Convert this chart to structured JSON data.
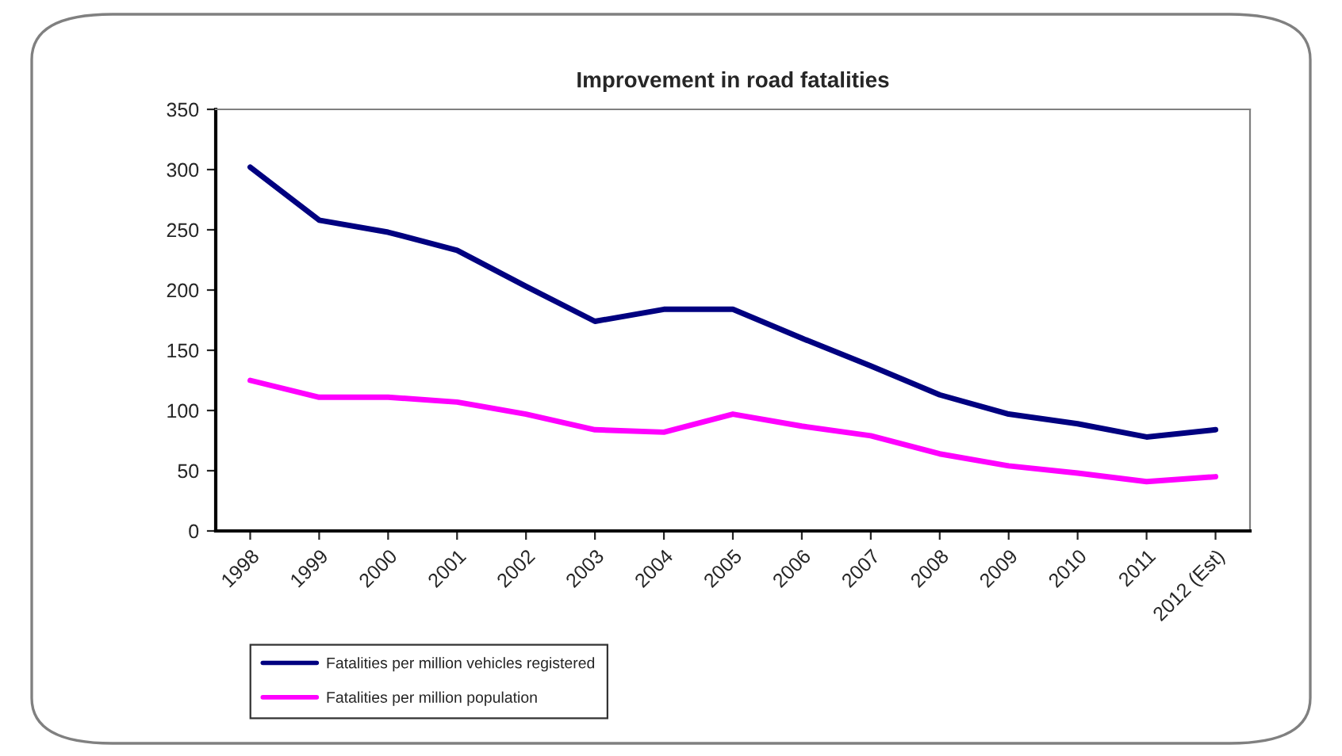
{
  "chart_data": {
    "type": "line",
    "title": "Improvement in road fatalities",
    "categories": [
      "1998",
      "1999",
      "2000",
      "2001",
      "2002",
      "2003",
      "2004",
      "2005",
      "2006",
      "2007",
      "2008",
      "2009",
      "2010",
      "2011",
      "2012 (Est)"
    ],
    "series": [
      {
        "name": "Fatalities per million vehicles registered",
        "color": "#000080",
        "values": [
          302,
          258,
          248,
          233,
          203,
          174,
          184,
          184,
          160,
          137,
          113,
          97,
          89,
          78,
          84
        ]
      },
      {
        "name": "Fatalities per million population",
        "color": "#ff00ff",
        "values": [
          125,
          111,
          111,
          107,
          97,
          84,
          82,
          97,
          87,
          79,
          64,
          54,
          48,
          41,
          45
        ]
      }
    ],
    "ylim": [
      0,
      350
    ],
    "yticks": [
      0,
      50,
      100,
      150,
      200,
      250,
      300,
      350
    ],
    "grid": false,
    "legend": "bottom",
    "marker": "none",
    "line_style": "solid"
  }
}
